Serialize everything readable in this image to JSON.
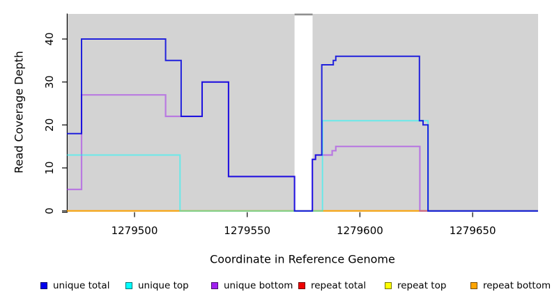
{
  "chart_data": {
    "type": "line",
    "subtype": "step-coverage",
    "title": "",
    "xlabel": "Coordinate in Reference Genome",
    "ylabel": "Read Coverage Depth",
    "xlim": [
      1279470,
      1279679
    ],
    "ylim": [
      0,
      46
    ],
    "x_ticks": [
      1279500,
      1279550,
      1279600,
      1279650
    ],
    "y_ticks": [
      0,
      10,
      20,
      30,
      40
    ],
    "grid": false,
    "panel_color": "#d3d3d3",
    "gap_color": "#ffffff",
    "gap_cap_color": "#8f8f8f",
    "axis_color": "#000000",
    "no_data_gap": {
      "x_start": 1279571,
      "x_end": 1279579
    },
    "x_end": 1279679,
    "series": [
      {
        "name": "repeat total",
        "color": "#ff0000",
        "opacity": 1,
        "width": 1.6,
        "steps": [
          [
            1279470,
            0
          ]
        ]
      },
      {
        "name": "repeat top",
        "color": "#ffff00",
        "opacity": 1,
        "width": 1.6,
        "steps": [
          [
            1279470,
            0
          ]
        ]
      },
      {
        "name": "repeat bottom",
        "color": "#ffa500",
        "opacity": 1,
        "width": 1.8,
        "steps": [
          [
            1279470,
            0
          ]
        ]
      },
      {
        "name": "unique bottom",
        "color": "#a020f0",
        "opacity": 0.5,
        "width": 2.2,
        "steps": [
          [
            1279470,
            5
          ],
          [
            1279476.5,
            27
          ],
          [
            1279513.8,
            22
          ],
          [
            1279530,
            30
          ],
          [
            1279541.7,
            8
          ],
          [
            1279571,
            0
          ],
          [
            1279578.9,
            12
          ],
          [
            1279580.3,
            13
          ],
          [
            1279587.7,
            14
          ],
          [
            1279589.3,
            15
          ],
          [
            1279626.6,
            0
          ]
        ]
      },
      {
        "name": "unique top",
        "color": "#00ffff",
        "opacity": 0.5,
        "width": 2,
        "steps": [
          [
            1279470,
            13
          ],
          [
            1279520.2,
            0
          ],
          [
            1279583.4,
            21
          ],
          [
            1279630.2,
            0
          ]
        ]
      },
      {
        "name": "unique total",
        "color": "#0000dd",
        "opacity": 0.85,
        "width": 2,
        "steps": [
          [
            1279470,
            18
          ],
          [
            1279476.5,
            40
          ],
          [
            1279513.8,
            35
          ],
          [
            1279520.7,
            22
          ],
          [
            1279530,
            30
          ],
          [
            1279541.7,
            8
          ],
          [
            1279571,
            0
          ],
          [
            1279578.9,
            12
          ],
          [
            1279580.3,
            13
          ],
          [
            1279583.1,
            34
          ],
          [
            1279588.2,
            35
          ],
          [
            1279589.3,
            36
          ],
          [
            1279626.4,
            21
          ],
          [
            1279628,
            20
          ],
          [
            1279630.2,
            0
          ]
        ]
      }
    ],
    "legend": {
      "position": "bottom",
      "items": [
        {
          "label": "unique total",
          "color": "#0000ee"
        },
        {
          "label": "unique top",
          "color": "#00ffff"
        },
        {
          "label": "unique bottom",
          "color": "#a020f0"
        },
        {
          "label": "repeat total",
          "color": "#ee0000"
        },
        {
          "label": "repeat top",
          "color": "#ffff00"
        },
        {
          "label": "repeat bottom",
          "color": "#ffa500"
        }
      ]
    }
  }
}
